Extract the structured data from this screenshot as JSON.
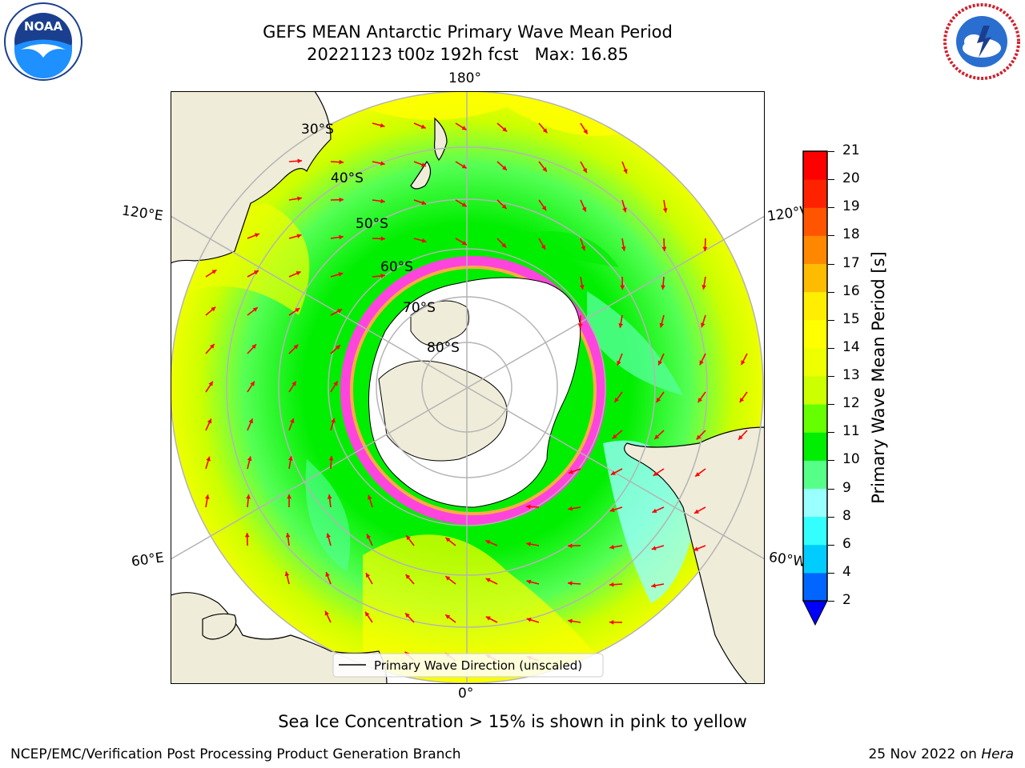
{
  "header": {
    "title": "GEFS MEAN Antarctic Primary Wave Mean Period",
    "subtitle": "20221123 t00z 192h fcst   Max: 16.85"
  },
  "logos": {
    "noaa": {
      "text": "NOAA",
      "icon": "noaa-logo-icon"
    },
    "nws": {
      "icon": "national-weather-service-logo-icon"
    }
  },
  "map": {
    "projection": "south-polar-stereographic",
    "longitude_labels": {
      "top": "180°",
      "bottom": "0°",
      "left_upper": "120°E",
      "left_lower": "60°E",
      "right_upper": "120°W",
      "right_lower": "60°W"
    },
    "latitude_labels": [
      "30°S",
      "40°S",
      "50°S",
      "60°S",
      "70°S",
      "80°S"
    ],
    "legend": {
      "label": "Primary Wave Direction (unscaled)"
    },
    "arrow_color": "#ff0000"
  },
  "colorbar": {
    "label": "Primary Wave Mean Period [s]",
    "ticks": [
      "2",
      "4",
      "6",
      "8",
      "9",
      "10",
      "11",
      "12",
      "13",
      "14",
      "15",
      "16",
      "17",
      "18",
      "19",
      "20",
      "21"
    ],
    "colors": [
      "#0066ff",
      "#00ccff",
      "#33ffff",
      "#99ffff",
      "#55ff88",
      "#00ee00",
      "#66ff00",
      "#ccff00",
      "#eeff00",
      "#ffff00",
      "#ffee00",
      "#ffbb00",
      "#ff8800",
      "#ff5500",
      "#ff2200",
      "#ff0000"
    ],
    "extend_color": "#0000ff"
  },
  "caption": "Sea Ice Concentration > 15% is shown in pink to yellow",
  "footer": {
    "left": "NCEP/EMC/Verification Post Processing Product Generation Branch",
    "right_date": "25 Nov 2022 on ",
    "right_machine": "Hera"
  }
}
